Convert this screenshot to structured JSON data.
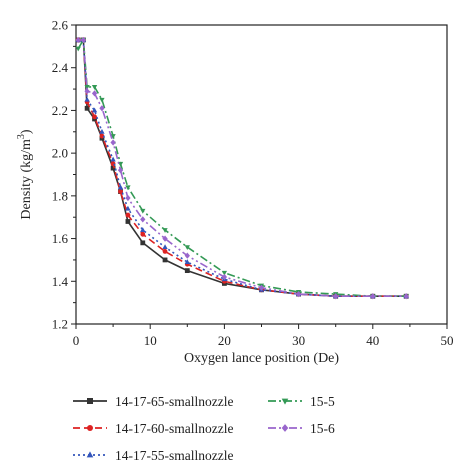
{
  "chart_data": {
    "type": "line",
    "title": "",
    "xlabel": "Oxygen lance position (De)",
    "ylabel": "Density (kg/m³)",
    "ylabel_main": "Density (kg/m",
    "ylabel_sup": "3",
    "ylabel_close": ")",
    "xlim": [
      0,
      50
    ],
    "ylim": [
      1.2,
      2.6
    ],
    "xticks": [
      0,
      10,
      20,
      30,
      40,
      50
    ],
    "yticks": [
      1.2,
      1.4,
      1.6,
      1.8,
      2.0,
      2.2,
      2.4,
      2.6
    ],
    "xtick_labels": [
      "0",
      "10",
      "20",
      "30",
      "40",
      "50"
    ],
    "ytick_labels": [
      "1.2",
      "1.4",
      "1.6",
      "1.8",
      "2.0",
      "2.2",
      "2.4",
      "2.6"
    ],
    "grid": false,
    "legend_position": "bottom",
    "series": [
      {
        "name": "14-17-65-smallnozzle",
        "color": "#333333",
        "dash": "solid",
        "marker": "square",
        "x": [
          0.3,
          1,
          1.5,
          2.5,
          3.5,
          5,
          6,
          7,
          9,
          12,
          15,
          20,
          25,
          30,
          35,
          40,
          44.5
        ],
        "y": [
          2.53,
          2.53,
          2.21,
          2.16,
          2.07,
          1.93,
          1.82,
          1.68,
          1.58,
          1.5,
          1.45,
          1.39,
          1.36,
          1.34,
          1.33,
          1.33,
          1.33
        ]
      },
      {
        "name": "14-17-60-smallnozzle",
        "color": "#dd2222",
        "dash": "dash",
        "marker": "circle",
        "x": [
          0.3,
          1,
          1.5,
          2.5,
          3.5,
          5,
          6,
          7,
          9,
          12,
          15,
          20,
          25,
          30,
          35,
          40,
          44.5
        ],
        "y": [
          2.53,
          2.53,
          2.24,
          2.17,
          2.08,
          1.95,
          1.82,
          1.71,
          1.62,
          1.54,
          1.48,
          1.4,
          1.36,
          1.34,
          1.33,
          1.33,
          1.33
        ]
      },
      {
        "name": "14-17-55-smallnozzle",
        "color": "#3355bb",
        "dash": "dot",
        "marker": "triangle-up",
        "x": [
          0.3,
          1,
          1.5,
          2.5,
          3.5,
          5,
          6,
          7,
          9,
          12,
          15,
          20,
          25,
          30,
          35,
          40,
          44.5
        ],
        "y": [
          2.53,
          2.53,
          2.25,
          2.2,
          2.1,
          1.97,
          1.84,
          1.74,
          1.64,
          1.56,
          1.49,
          1.41,
          1.36,
          1.34,
          1.33,
          1.33,
          1.33
        ]
      },
      {
        "name": "15-5",
        "color": "#339955",
        "dash": "dashdot",
        "marker": "triangle-down",
        "x": [
          0.3,
          1,
          1.5,
          2.5,
          3.5,
          5,
          6,
          7,
          9,
          12,
          15,
          20,
          25,
          30,
          35,
          40,
          44.5
        ],
        "y": [
          2.49,
          2.53,
          2.31,
          2.31,
          2.25,
          2.08,
          1.95,
          1.84,
          1.73,
          1.64,
          1.56,
          1.44,
          1.38,
          1.35,
          1.34,
          1.33,
          1.33
        ]
      },
      {
        "name": "15-6",
        "color": "#9966cc",
        "dash": "dashdotdot",
        "marker": "diamond",
        "x": [
          0.3,
          1,
          1.5,
          2.5,
          3.5,
          5,
          6,
          7,
          9,
          12,
          15,
          20,
          25,
          30,
          35,
          40,
          44.5
        ],
        "y": [
          2.53,
          2.53,
          2.29,
          2.28,
          2.21,
          2.05,
          1.92,
          1.79,
          1.69,
          1.6,
          1.52,
          1.42,
          1.37,
          1.34,
          1.33,
          1.33,
          1.33
        ]
      }
    ]
  }
}
